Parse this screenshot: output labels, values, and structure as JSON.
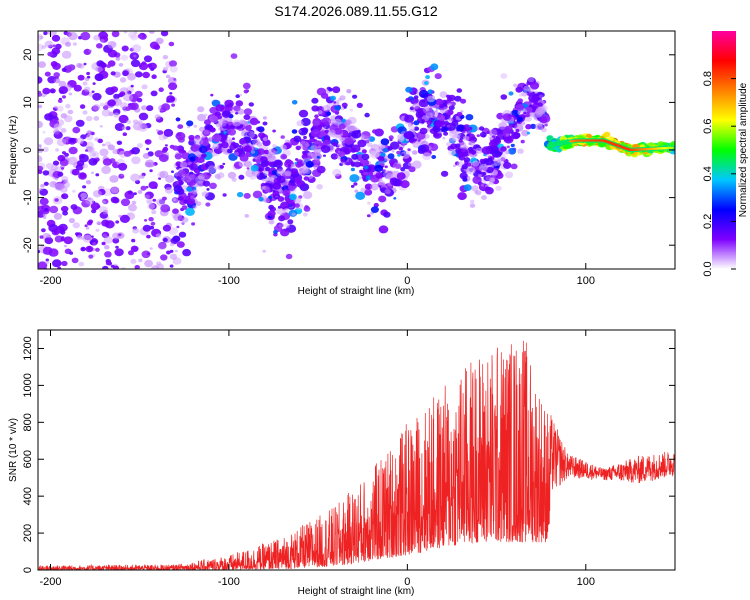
{
  "title": "S174.2026.089.11.55.G12",
  "chart_data": [
    {
      "type": "heatmap",
      "name": "spectrogram",
      "xlabel": "Height of straight line (km)",
      "ylabel": "Frequency (Hz)",
      "xlim": [
        -207,
        150
      ],
      "ylim": [
        -25,
        25
      ],
      "xticks": [
        -200,
        -100,
        0,
        100
      ],
      "yticks": [
        -20,
        -10,
        0,
        10,
        20
      ],
      "colorbar": {
        "label": "Normalized spectral amplitude",
        "range": [
          0,
          1
        ],
        "ticks": [
          0.0,
          0.2,
          0.4,
          0.6,
          0.8
        ],
        "tick_labels": [
          "0.0",
          "0.2",
          "0.4",
          "0.6",
          "0.8"
        ],
        "colormap": [
          "#ffffff",
          "#7d00ff",
          "#0000ff",
          "#00c8ff",
          "#00ff00",
          "#ffff00",
          "#ff8000",
          "#ff0000",
          "#ff00a0"
        ]
      },
      "trend": [
        {
          "x": -200,
          "f": 0,
          "spread": 25,
          "amp": 0.05
        },
        {
          "x": -140,
          "f": 0,
          "spread": 18,
          "amp": 0.08
        },
        {
          "x": -120,
          "f": -1,
          "spread": 8,
          "amp": 0.15
        },
        {
          "x": -100,
          "f": -2,
          "spread": 8,
          "amp": 0.15
        },
        {
          "x": -60,
          "f": -2,
          "spread": 8,
          "amp": 0.15
        },
        {
          "x": -30,
          "f": 0,
          "spread": 7,
          "amp": 0.15
        },
        {
          "x": 0,
          "f": 1,
          "spread": 7,
          "amp": 0.15
        },
        {
          "x": 30,
          "f": 3,
          "spread": 7,
          "amp": 0.2
        },
        {
          "x": 60,
          "f": 3,
          "spread": 6,
          "amp": 0.25
        },
        {
          "x": 70,
          "f": 4,
          "spread": 4,
          "amp": 0.35
        },
        {
          "x": 80,
          "f": 1,
          "spread": 1.5,
          "amp": 0.5
        },
        {
          "x": 95,
          "f": 2,
          "spread": 1,
          "amp": 0.75
        },
        {
          "x": 110,
          "f": 2,
          "spread": 1,
          "amp": 0.8
        },
        {
          "x": 125,
          "f": 0,
          "spread": 1,
          "amp": 0.8
        },
        {
          "x": 150,
          "f": 0.5,
          "spread": 1,
          "amp": 0.55
        }
      ]
    },
    {
      "type": "line",
      "name": "snr",
      "xlabel": "Height of straight line (km)",
      "ylabel": "SNR (10 * v/v)",
      "xlim": [
        -207,
        150
      ],
      "ylim": [
        0,
        1300
      ],
      "xticks": [
        -200,
        -100,
        0,
        100
      ],
      "yticks": [
        0,
        200,
        400,
        600,
        800,
        1000,
        1200
      ],
      "color": "#ee2222",
      "envelope": [
        {
          "x": -207,
          "min": 0,
          "max": 25
        },
        {
          "x": -130,
          "min": 0,
          "max": 30
        },
        {
          "x": -100,
          "min": 0,
          "max": 80
        },
        {
          "x": -70,
          "min": 5,
          "max": 180
        },
        {
          "x": -40,
          "min": 20,
          "max": 350
        },
        {
          "x": -20,
          "min": 50,
          "max": 550
        },
        {
          "x": 0,
          "min": 80,
          "max": 800
        },
        {
          "x": 20,
          "min": 120,
          "max": 1000
        },
        {
          "x": 40,
          "min": 150,
          "max": 1200
        },
        {
          "x": 65,
          "min": 150,
          "max": 1300
        },
        {
          "x": 78,
          "min": 150,
          "max": 900
        },
        {
          "x": 90,
          "min": 440,
          "max": 630
        },
        {
          "x": 110,
          "min": 460,
          "max": 550
        },
        {
          "x": 130,
          "min": 400,
          "max": 620
        },
        {
          "x": 150,
          "min": 450,
          "max": 650
        }
      ]
    }
  ]
}
